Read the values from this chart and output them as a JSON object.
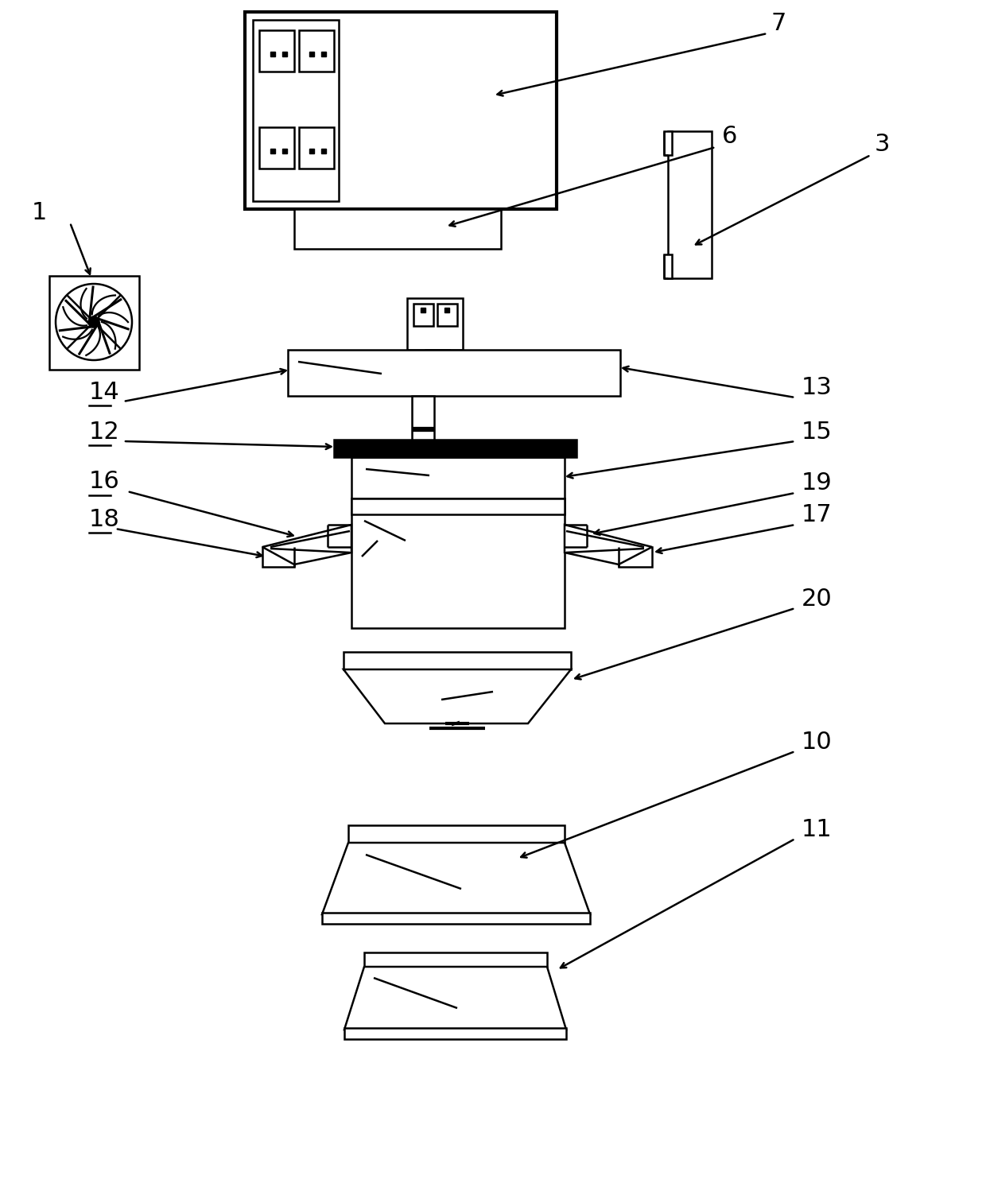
{
  "bg_color": "#ffffff",
  "lc": "#000000",
  "lw": 1.8,
  "tlw": 3.0,
  "fig_width": 12.4,
  "fig_height": 14.88
}
